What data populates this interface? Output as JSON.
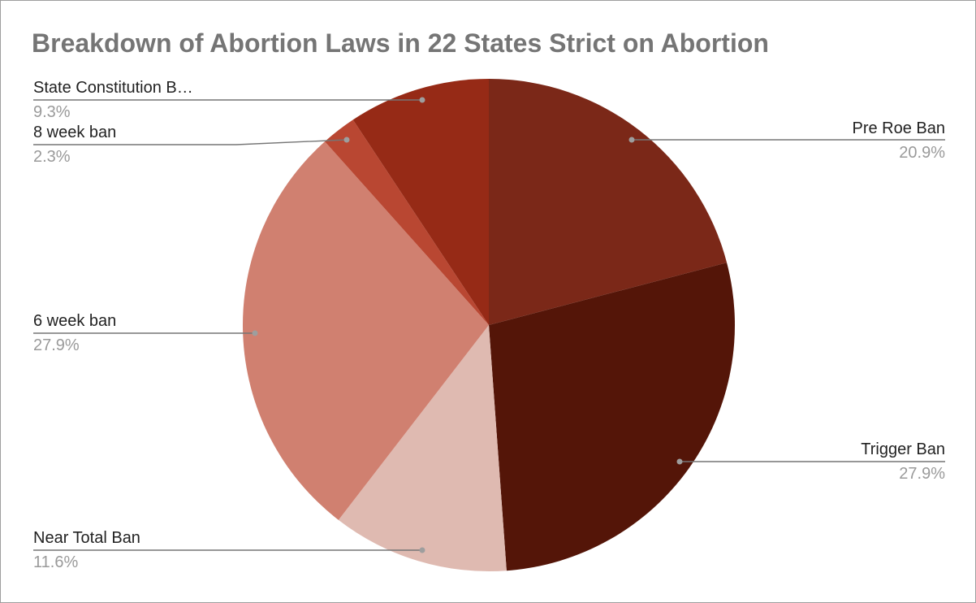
{
  "chart_data": {
    "type": "pie",
    "title": "Breakdown of Abortion Laws in 22 States Strict on Abortion",
    "slices": [
      {
        "label": "Pre Roe Ban",
        "value": 20.9,
        "display": "20.9%",
        "color": "#7b2818",
        "side": "right"
      },
      {
        "label": "Trigger Ban",
        "value": 27.9,
        "display": "27.9%",
        "color": "#541508",
        "side": "right"
      },
      {
        "label": "Near Total Ban",
        "value": 11.6,
        "display": "11.6%",
        "color": "#dfbab1",
        "side": "left"
      },
      {
        "label": "6 week ban",
        "value": 27.9,
        "display": "27.9%",
        "color": "#d08070",
        "side": "left"
      },
      {
        "label": "8 week ban",
        "value": 2.3,
        "display": "2.3%",
        "color": "#b94732",
        "side": "left"
      },
      {
        "label": "State Constitution B…",
        "value": 9.3,
        "display": "9.3%",
        "color": "#962a16",
        "side": "left"
      }
    ]
  },
  "colors": {
    "title": "#757575",
    "label": "#222222",
    "percent": "#9a9a9a",
    "leader": "#757575",
    "border": "#9e9e9e"
  }
}
